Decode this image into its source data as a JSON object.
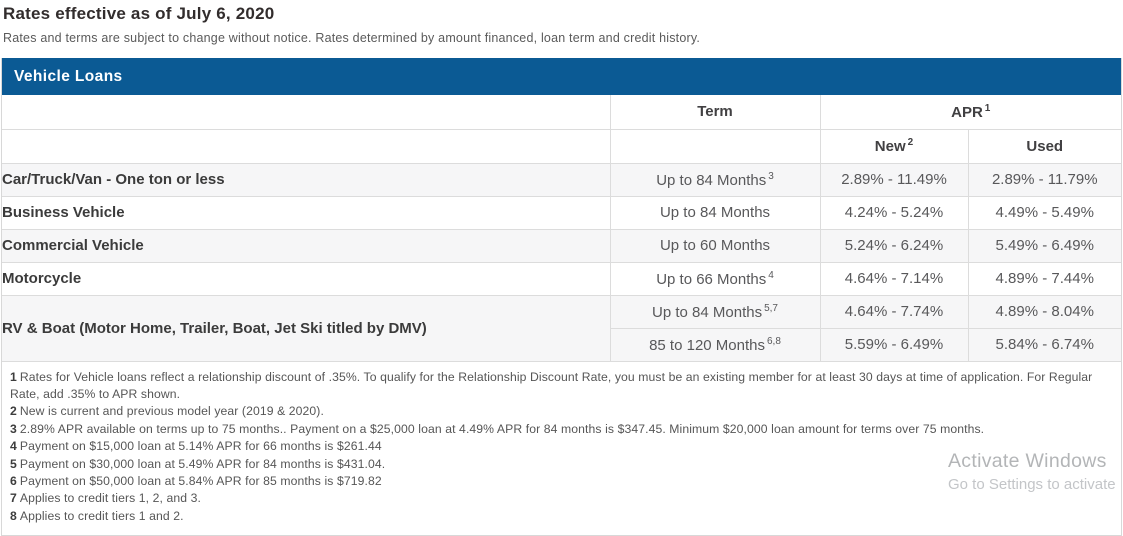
{
  "page": {
    "title": "Rates effective as of July 6, 2020",
    "subtitle": "Rates and terms are subject to change without notice. Rates determined by amount financed, loan term and credit history."
  },
  "table": {
    "section_title": "Vehicle Loans",
    "headers": {
      "term": "Term",
      "apr": "APR",
      "apr_sup": "1",
      "new": "New",
      "new_sup": "2",
      "used": "Used"
    },
    "rows": [
      {
        "product": "Car/Truck/Van - One ton or less",
        "shaded": true,
        "terms": [
          {
            "term": "Up to 84 Months",
            "sup": "3",
            "new": "2.89% - 11.49%",
            "used": "2.89% - 11.79%"
          }
        ]
      },
      {
        "product": "Business Vehicle",
        "shaded": false,
        "terms": [
          {
            "term": "Up to 84 Months",
            "sup": "",
            "new": "4.24% - 5.24%",
            "used": "4.49% - 5.49%"
          }
        ]
      },
      {
        "product": "Commercial Vehicle",
        "shaded": true,
        "terms": [
          {
            "term": "Up to 60 Months",
            "sup": "",
            "new": "5.24% - 6.24%",
            "used": "5.49% - 6.49%"
          }
        ]
      },
      {
        "product": "Motorcycle",
        "shaded": false,
        "terms": [
          {
            "term": "Up to 66 Months",
            "sup": "4",
            "new": "4.64% - 7.14%",
            "used": "4.89% - 7.44%"
          }
        ]
      },
      {
        "product": "RV & Boat (Motor Home, Trailer, Boat, Jet Ski titled by DMV)",
        "shaded": true,
        "terms": [
          {
            "term": "Up to 84 Months",
            "sup": "5,7",
            "new": "4.64% - 7.74%",
            "used": "4.89% - 8.04%"
          },
          {
            "term": "85 to 120 Months",
            "sup": "6,8",
            "new": "5.59% - 6.49%",
            "used": "5.84% - 6.74%"
          }
        ]
      }
    ]
  },
  "footnotes": [
    {
      "num": "1",
      "text": "Rates for Vehicle loans reflect a relationship discount of .35%. To qualify for the Relationship Discount Rate, you must be an existing member for at least 30 days at time of application. For Regular Rate, add .35% to APR shown."
    },
    {
      "num": "2",
      "text": "New is current and previous model year (2019 & 2020)."
    },
    {
      "num": "3",
      "text": "2.89% APR available on terms up to 75 months.. Payment on a $25,000 loan at 4.49% APR for 84 months is $347.45. Minimum $20,000 loan amount for terms over 75 months."
    },
    {
      "num": "4",
      "text": "Payment on $15,000 loan at 5.14% APR for 66 months is $261.44"
    },
    {
      "num": "5",
      "text": "Payment on $30,000 loan at 5.49% APR for 84 months is $431.04."
    },
    {
      "num": "6",
      "text": "Payment on $50,000 loan at 5.84% APR for 85 months is $719.82"
    },
    {
      "num": "7",
      "text": "Applies to credit tiers 1, 2, and 3."
    },
    {
      "num": "8",
      "text": "Applies to credit tiers 1 and 2."
    }
  ],
  "watermark": {
    "line1": "Activate Windows",
    "line2": "Go to Settings to activate"
  },
  "colors": {
    "header_bar": "#0b5a94",
    "row_shaded": "#f6f6f7",
    "border": "#dcdcdc",
    "title_text": "#322d2d",
    "body_text": "#58585a"
  }
}
